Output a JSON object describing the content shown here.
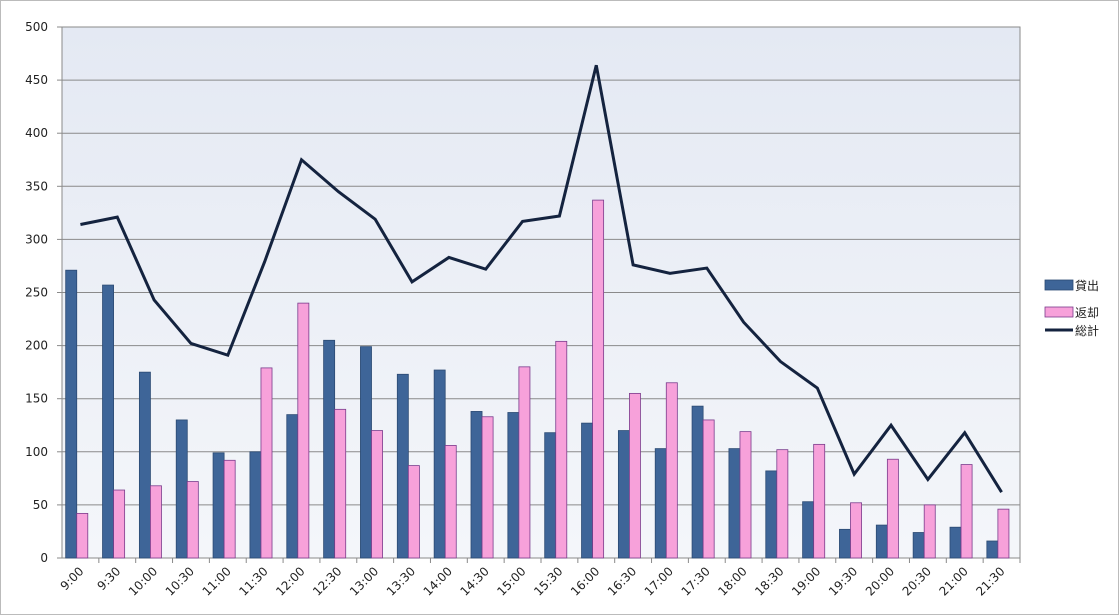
{
  "chart_data": {
    "type": "bar-line",
    "categories": [
      "9:00",
      "9:30",
      "10:00",
      "10:30",
      "11:00",
      "11:30",
      "12:00",
      "12:30",
      "13:00",
      "13:30",
      "14:00",
      "14:30",
      "15:00",
      "15:30",
      "16:00",
      "16:30",
      "17:00",
      "17:30",
      "18:00",
      "18:30",
      "19:00",
      "19:30",
      "20:00",
      "20:30",
      "21:00",
      "21:30"
    ],
    "series": [
      {
        "name": "貸出",
        "color": "#3e6598",
        "type": "bar",
        "values": [
          271,
          257,
          175,
          130,
          99,
          100,
          135,
          205,
          199,
          173,
          177,
          138,
          137,
          118,
          127,
          120,
          103,
          143,
          103,
          82,
          53,
          27,
          31,
          24,
          29,
          16
        ]
      },
      {
        "name": "返却",
        "color": "#f7a1da",
        "type": "bar",
        "values": [
          42,
          64,
          68,
          72,
          92,
          179,
          240,
          140,
          120,
          87,
          106,
          133,
          180,
          204,
          337,
          155,
          165,
          130,
          119,
          102,
          107,
          52,
          93,
          50,
          88,
          46
        ]
      },
      {
        "name": "総計",
        "color": "#14233f",
        "type": "line",
        "values": [
          314,
          321,
          243,
          202,
          191,
          279,
          375,
          345,
          319,
          260,
          283,
          272,
          317,
          322,
          464,
          276,
          268,
          273,
          222,
          185,
          160,
          79,
          125,
          74,
          118,
          62
        ]
      }
    ],
    "ylim": [
      0,
      500
    ],
    "yticks": [
      0,
      50,
      100,
      150,
      200,
      250,
      300,
      350,
      400,
      450,
      500
    ],
    "grid": true,
    "legend": "right"
  }
}
